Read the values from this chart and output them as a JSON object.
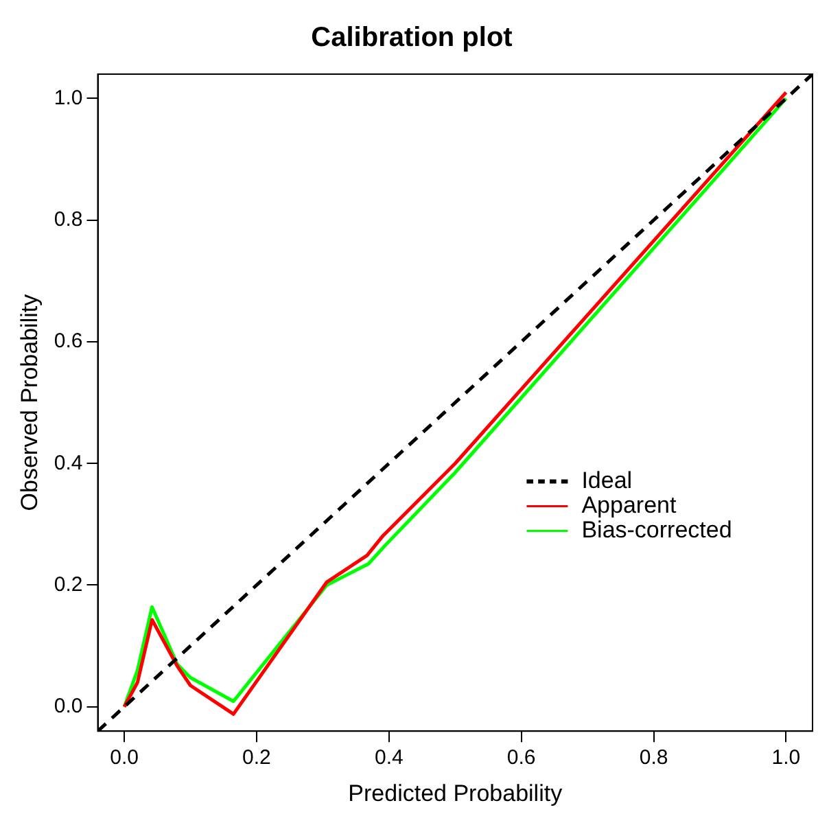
{
  "chart_data": {
    "type": "line",
    "title": "Calibration plot",
    "xlabel": "Predicted Probability",
    "ylabel": "Observed Probability",
    "xlim": [
      -0.04,
      1.04
    ],
    "ylim": [
      -0.04,
      1.04
    ],
    "xticks": [
      {
        "value": 0,
        "label": "0.0"
      },
      0.2,
      0.4,
      0.6,
      0.8,
      {
        "value": 1,
        "label": "1.0"
      }
    ],
    "yticks": [
      {
        "value": 0,
        "label": "0.0"
      },
      0.2,
      0.4,
      0.6,
      0.8,
      {
        "value": 1,
        "label": "1.0"
      }
    ],
    "grid": false,
    "legend": "right",
    "marker": "none",
    "series": [
      {
        "name": "Ideal",
        "color": "#000000",
        "line_style": "dashed",
        "x": [
          -0.04,
          1.04
        ],
        "values": [
          -0.04,
          1.04
        ]
      },
      {
        "name": "Apparent",
        "color": "#ff0000",
        "x": [
          0,
          0.02,
          0.042,
          0.08,
          0.1,
          0.165,
          0.306,
          0.367,
          0.39,
          0.5,
          1
        ],
        "values": [
          0,
          0.04,
          0.143,
          0.067,
          0.035,
          -0.012,
          0.205,
          0.249,
          0.28,
          0.4,
          1.01
        ]
      },
      {
        "name": "Bias-corrected",
        "color": "#00ff00",
        "x": [
          0,
          0.02,
          0.042,
          0.08,
          0.1,
          0.165,
          0.306,
          0.369,
          0.394,
          0.5,
          1
        ],
        "values": [
          0,
          0.06,
          0.164,
          0.07,
          0.048,
          0.009,
          0.2,
          0.235,
          0.265,
          0.385,
          1
        ]
      }
    ]
  }
}
